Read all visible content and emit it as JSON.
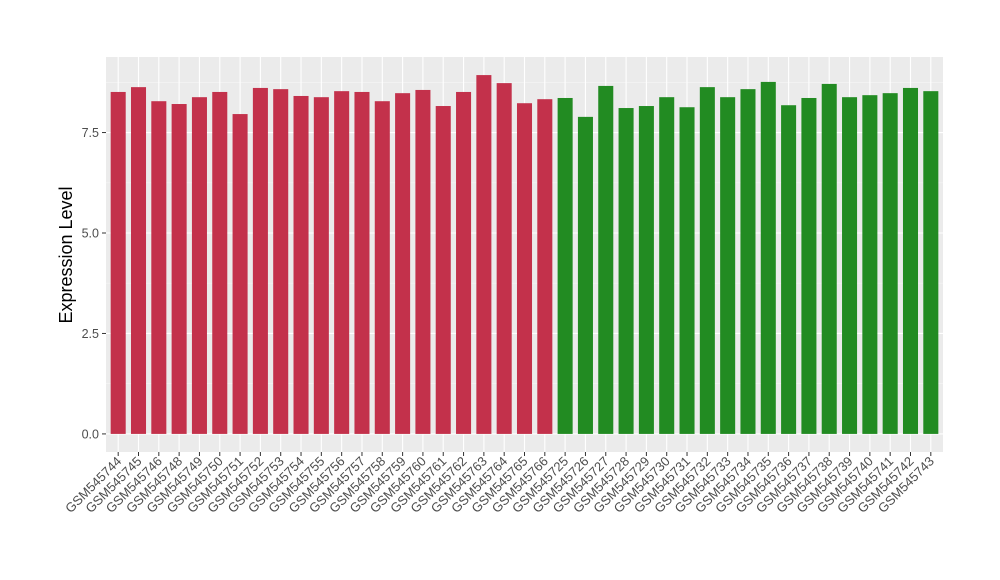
{
  "chart_data": {
    "type": "bar",
    "y_label": "Expression Level",
    "categories": [
      "GSM545744",
      "GSM545745",
      "GSM545746",
      "GSM545748",
      "GSM545749",
      "GSM545750",
      "GSM545751",
      "GSM545752",
      "GSM545753",
      "GSM545754",
      "GSM545755",
      "GSM545756",
      "GSM545757",
      "GSM545758",
      "GSM545759",
      "GSM545760",
      "GSM545761",
      "GSM545762",
      "GSM545763",
      "GSM545764",
      "GSM545765",
      "GSM545766",
      "GSM545725",
      "GSM545726",
      "GSM545727",
      "GSM545728",
      "GSM545729",
      "GSM545730",
      "GSM545731",
      "GSM545732",
      "GSM545733",
      "GSM545734",
      "GSM545735",
      "GSM545736",
      "GSM545737",
      "GSM545738",
      "GSM545739",
      "GSM545740",
      "GSM545741",
      "GSM545742",
      "GSM545743"
    ],
    "values": [
      8.51,
      8.63,
      8.28,
      8.21,
      8.38,
      8.51,
      7.96,
      8.61,
      8.58,
      8.41,
      8.38,
      8.53,
      8.51,
      8.28,
      8.48,
      8.56,
      8.16,
      8.51,
      8.93,
      8.73,
      8.23,
      8.33,
      8.36,
      7.89,
      8.66,
      8.11,
      8.16,
      8.38,
      8.13,
      8.63,
      8.38,
      8.58,
      8.76,
      8.18,
      8.36,
      8.71,
      8.38,
      8.43,
      8.48,
      8.61,
      8.53
    ],
    "colors": [
      "#c3314b",
      "#c3314b",
      "#c3314b",
      "#c3314b",
      "#c3314b",
      "#c3314b",
      "#c3314b",
      "#c3314b",
      "#c3314b",
      "#c3314b",
      "#c3314b",
      "#c3314b",
      "#c3314b",
      "#c3314b",
      "#c3314b",
      "#c3314b",
      "#c3314b",
      "#c3314b",
      "#c3314b",
      "#c3314b",
      "#c3314b",
      "#c3314b",
      "#228b22",
      "#228b22",
      "#228b22",
      "#228b22",
      "#228b22",
      "#228b22",
      "#228b22",
      "#228b22",
      "#228b22",
      "#228b22",
      "#228b22",
      "#228b22",
      "#228b22",
      "#228b22",
      "#228b22",
      "#228b22",
      "#228b22",
      "#228b22",
      "#228b22"
    ],
    "ylim": [
      -0.45,
      9.38
    ],
    "yticks": [
      {
        "value": 0,
        "label": "0.0"
      },
      2.5,
      {
        "value": 5,
        "label": "5.0"
      },
      7.5
    ],
    "grid": true
  }
}
